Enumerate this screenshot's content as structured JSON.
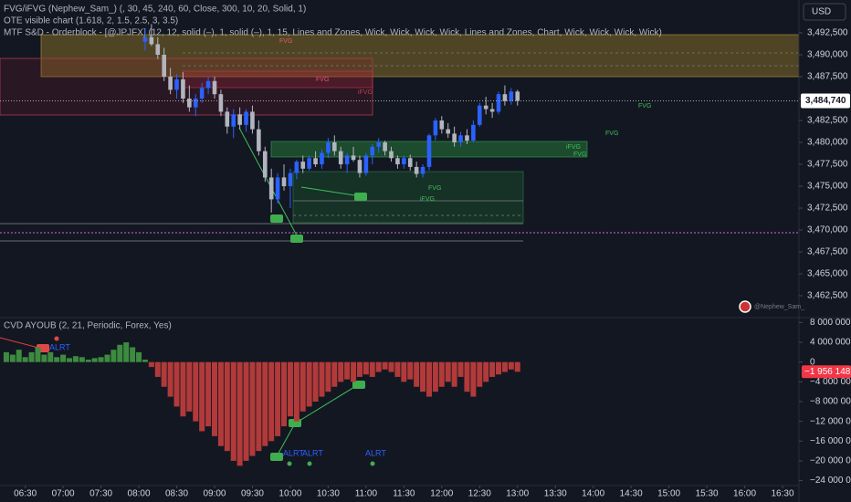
{
  "chart_data": [
    {
      "type": "candlestick",
      "currency": "USD",
      "legend": [
        "FVG/iFVG (Nephew_Sam_) (, 30, 45, 240, 60, Close, 300, 10, 20, Solid, 1)",
        "OTE visible chart (1.618, 2, 1.5, 2.5, 3, 3.5)",
        "MTF S&D - Orderblock - [@JPJFX] (12, 12, solid (–), 1, solid (–), 1, 15, Lines and Zones, Wick, Wick, Wick, Wick, Lines and Zones, Chart, Wick, Wick, Wick, Wick)"
      ],
      "watermark": "@Nephew_Sam_",
      "annotations": [
        "FVG",
        "FVG",
        "iFVG",
        "FVG",
        "FVG",
        "iFVG",
        "FVG",
        "FVG",
        "iFVG"
      ],
      "xlim": [
        370,
        1003
      ],
      "ylim": [
        3460000,
        3496250
      ],
      "yticks": [
        {
          "value": 3462500,
          "label": "3,462,500"
        },
        {
          "value": 3465000,
          "label": "3,465,000"
        },
        {
          "value": 3467500,
          "label": "3,467,500"
        },
        {
          "value": 3470000,
          "label": "3,470,000"
        },
        {
          "value": 3472500,
          "label": "3,472,500"
        },
        {
          "value": 3475000,
          "label": "3,475,000"
        },
        {
          "value": 3477500,
          "label": "3,477,500"
        },
        {
          "value": 3480000,
          "label": "3,480,000"
        },
        {
          "value": 3482500,
          "label": "3,482,500"
        },
        {
          "value": 3485000,
          "label": "3,485,000"
        },
        {
          "value": 3487500,
          "label": "3,487,500"
        },
        {
          "value": 3490000,
          "label": "3,490,000"
        },
        {
          "value": 3492500,
          "label": "3,492,500"
        }
      ],
      "last_value": {
        "value": 3484740,
        "label": "3,484,740"
      },
      "up_color": "#2962ff",
      "down_color": "#b2b5be",
      "x": [
        485,
        490,
        495,
        500,
        505,
        510,
        515,
        520,
        525,
        530,
        535,
        540,
        545,
        550,
        555,
        560,
        565,
        570,
        575,
        580,
        585,
        590,
        595,
        600,
        605,
        610,
        615,
        620,
        625,
        630,
        635,
        640,
        645,
        650,
        655,
        660,
        665,
        670,
        675,
        680,
        685,
        690,
        695,
        700,
        705,
        710,
        715,
        720,
        725,
        730,
        735,
        740,
        745,
        750,
        755,
        760,
        765,
        770,
        775,
        780
      ],
      "open": [
        3491500,
        3492000,
        3491200,
        3490000,
        3487500,
        3486000,
        3487200,
        3485000,
        3484000,
        3485000,
        3486200,
        3487000,
        3485500,
        3483500,
        3481800,
        3483200,
        3482000,
        3483500,
        3481500,
        3479000,
        3476000,
        3473500,
        3476000,
        3475000,
        3476500,
        3477800,
        3477000,
        3478200,
        3477500,
        3478800,
        3480000,
        3479000,
        3477500,
        3478500,
        3478000,
        3476500,
        3478500,
        3479500,
        3480000,
        3479000,
        3478200,
        3477500,
        3478200,
        3477200,
        3476400,
        3477200,
        3480800,
        3482500,
        3481500,
        3481000,
        3480000,
        3480800,
        3480200,
        3482000,
        3484200,
        3483800,
        3483500,
        3485500,
        3484700,
        3485800
      ],
      "high": [
        3493000,
        3493500,
        3492000,
        3490800,
        3488500,
        3487800,
        3488000,
        3486500,
        3485500,
        3486800,
        3487500,
        3487500,
        3486000,
        3484000,
        3483800,
        3484000,
        3483800,
        3484200,
        3482500,
        3479500,
        3477000,
        3476500,
        3477500,
        3477000,
        3478000,
        3478500,
        3478500,
        3479000,
        3479200,
        3480500,
        3480800,
        3479500,
        3478800,
        3479500,
        3478500,
        3478800,
        3479800,
        3480500,
        3480200,
        3479500,
        3478500,
        3478500,
        3478600,
        3477800,
        3477500,
        3481000,
        3482800,
        3483000,
        3482200,
        3481800,
        3481200,
        3481500,
        3482500,
        3484500,
        3485200,
        3484500,
        3485800,
        3486500,
        3486200,
        3486000
      ],
      "low": [
        3490500,
        3491000,
        3489500,
        3487000,
        3485500,
        3485000,
        3484500,
        3483500,
        3483000,
        3484500,
        3485500,
        3485000,
        3483000,
        3481000,
        3480500,
        3481500,
        3481200,
        3481000,
        3478500,
        3475500,
        3472000,
        3473000,
        3474500,
        3472500,
        3475800,
        3476500,
        3476800,
        3477200,
        3477000,
        3478200,
        3478500,
        3477000,
        3476500,
        3477800,
        3476000,
        3476200,
        3477500,
        3478800,
        3478500,
        3477800,
        3477000,
        3477000,
        3476800,
        3476000,
        3476000,
        3476800,
        3480200,
        3481000,
        3480500,
        3479500,
        3479500,
        3479800,
        3480000,
        3481800,
        3483200,
        3482800,
        3483200,
        3484200,
        3484300,
        3484200
      ],
      "close": [
        3492000,
        3491200,
        3490000,
        3487500,
        3486000,
        3487200,
        3485000,
        3484000,
        3485000,
        3486200,
        3487000,
        3485500,
        3483500,
        3481800,
        3483200,
        3482000,
        3483500,
        3481500,
        3479000,
        3476000,
        3473500,
        3476000,
        3475000,
        3476500,
        3477800,
        3477000,
        3478200,
        3477500,
        3478800,
        3480000,
        3479000,
        3477500,
        3478500,
        3478000,
        3476500,
        3478500,
        3479500,
        3480000,
        3479000,
        3478200,
        3477500,
        3478200,
        3477200,
        3476400,
        3477200,
        3480800,
        3482500,
        3481500,
        3481000,
        3480000,
        3480800,
        3480200,
        3482000,
        3484200,
        3483800,
        3483500,
        3485500,
        3484700,
        3485800,
        3484740
      ]
    },
    {
      "type": "bar",
      "title": "CVD AYOUB (2, 21, Periodic, Forex, Yes)",
      "annotations": [
        "ALRT",
        "ALRT",
        "ALRT",
        "ALRT"
      ],
      "xlim": [
        370,
        1003
      ],
      "xticks": [
        {
          "value": 390,
          "label": "06:30"
        },
        {
          "value": 420,
          "label": "07:00"
        },
        {
          "value": 450,
          "label": "07:30"
        },
        {
          "value": 480,
          "label": "08:00"
        },
        {
          "value": 510,
          "label": "08:30"
        },
        {
          "value": 540,
          "label": "09:00"
        },
        {
          "value": 570,
          "label": "09:30"
        },
        {
          "value": 600,
          "label": "10:00"
        },
        {
          "value": 630,
          "label": "10:30"
        },
        {
          "value": 660,
          "label": "11:00"
        },
        {
          "value": 690,
          "label": "11:30"
        },
        {
          "value": 720,
          "label": "12:00"
        },
        {
          "value": 750,
          "label": "12:30"
        },
        {
          "value": 780,
          "label": "13:00"
        },
        {
          "value": 810,
          "label": "13:30"
        },
        {
          "value": 840,
          "label": "14:00"
        },
        {
          "value": 870,
          "label": "14:30"
        },
        {
          "value": 900,
          "label": "15:00"
        },
        {
          "value": 930,
          "label": "15:30"
        },
        {
          "value": 960,
          "label": "16:00"
        },
        {
          "value": 990,
          "label": "16:30"
        }
      ],
      "ylim": [
        -25000000,
        9000000
      ],
      "yticks": [
        {
          "value": 8000000,
          "label": "8 000 000"
        },
        {
          "value": 4000000,
          "label": "4 000 000"
        },
        0,
        {
          "value": -4000000,
          "label": "−4 000 000"
        },
        {
          "value": -8000000,
          "label": "−8 000 000"
        },
        {
          "value": -12000000,
          "label": "−12 000 000"
        },
        {
          "value": -16000000,
          "label": "−16 000 000"
        },
        {
          "value": -20000000,
          "label": "−20 000 000"
        },
        {
          "value": -24000000,
          "label": "−24 000 000"
        }
      ],
      "last_value": {
        "value": -1956148,
        "label": "−1 956 148"
      },
      "positive_color": "#3d8b40",
      "negative_color": "#b23a3a",
      "x": [
        375,
        380,
        385,
        390,
        395,
        400,
        405,
        410,
        415,
        420,
        425,
        430,
        435,
        440,
        445,
        450,
        455,
        460,
        465,
        470,
        475,
        480,
        485,
        490,
        495,
        500,
        505,
        510,
        515,
        520,
        525,
        530,
        535,
        540,
        545,
        550,
        555,
        560,
        565,
        570,
        575,
        580,
        585,
        590,
        595,
        600,
        605,
        610,
        615,
        620,
        625,
        630,
        635,
        640,
        645,
        650,
        655,
        660,
        665,
        670,
        675,
        680,
        685,
        690,
        695,
        700,
        705,
        710,
        715,
        720,
        725,
        730,
        735,
        740,
        745,
        750,
        755,
        760,
        765,
        770,
        775,
        780
      ],
      "values": [
        2000000,
        1500000,
        2500000,
        1000000,
        2000000,
        3000000,
        1500000,
        2000000,
        1000000,
        1500000,
        800000,
        1200000,
        1000000,
        500000,
        800000,
        1000000,
        1500000,
        2500000,
        3500000,
        4000000,
        3000000,
        2000000,
        500000,
        -1000000,
        -3000000,
        -5000000,
        -7000000,
        -9000000,
        -11000000,
        -10000000,
        -12000000,
        -14000000,
        -13000000,
        -15000000,
        -17000000,
        -18000000,
        -20000000,
        -21000000,
        -20000000,
        -19000000,
        -18000000,
        -17000000,
        -16000000,
        -15000000,
        -13000000,
        -11000000,
        -12000000,
        -10000000,
        -9000000,
        -8000000,
        -7000000,
        -6000000,
        -5000000,
        -4000000,
        -3500000,
        -4000000,
        -3000000,
        -2500000,
        -3000000,
        -2000000,
        -1500000,
        -2000000,
        -3000000,
        -4000000,
        -3500000,
        -5000000,
        -6000000,
        -7000000,
        -6000000,
        -5000000,
        -4000000,
        -5000000,
        -3000000,
        -6000000,
        -7000000,
        -5000000,
        -4000000,
        -3000000,
        -2500000,
        -2000000,
        -1500000,
        -1956148
      ]
    }
  ]
}
